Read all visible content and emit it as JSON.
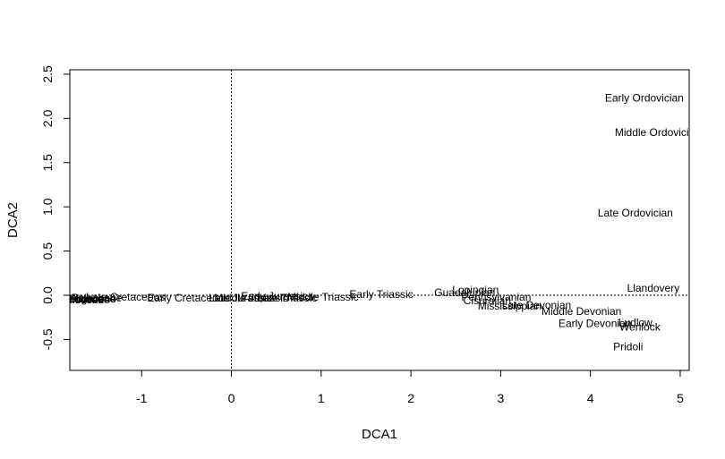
{
  "chart_data": {
    "type": "scatter",
    "xlabel": "DCA1",
    "ylabel": "DCA2",
    "xlim": [
      -1.8,
      5.1
    ],
    "ylim": [
      -0.85,
      2.55
    ],
    "x_ticks": [
      -1,
      0,
      1,
      2,
      3,
      4,
      5
    ],
    "y_ticks": [
      -0.5,
      0.0,
      0.5,
      1.0,
      1.5,
      2.0,
      2.5
    ],
    "x_tick_labels": [
      "-1",
      "0",
      "1",
      "2",
      "3",
      "4",
      "5"
    ],
    "y_tick_labels": [
      "-0.5",
      "0.0",
      "0.5",
      "1.0",
      "1.5",
      "2.0",
      "2.5"
    ],
    "reference_lines": {
      "x": 0,
      "y": 0,
      "style": "dotted"
    },
    "grid": false,
    "points": [
      {
        "label": "Early Ordovician",
        "x": 4.6,
        "y": 2.23
      },
      {
        "label": "Middle Ordovician",
        "x": 4.75,
        "y": 1.84
      },
      {
        "label": "Late Ordovician",
        "x": 4.5,
        "y": 0.93
      },
      {
        "label": "Llandovery",
        "x": 4.7,
        "y": 0.08
      },
      {
        "label": "Wenlock",
        "x": 4.55,
        "y": -0.36
      },
      {
        "label": "Ludlow",
        "x": 4.5,
        "y": -0.31
      },
      {
        "label": "Pridoli",
        "x": 4.42,
        "y": -0.58
      },
      {
        "label": "Early Devonian",
        "x": 4.05,
        "y": -0.32
      },
      {
        "label": "Middle Devonian",
        "x": 3.9,
        "y": -0.18
      },
      {
        "label": "Late Devonian",
        "x": 3.4,
        "y": -0.11
      },
      {
        "label": "Mississippian",
        "x": 3.1,
        "y": -0.12
      },
      {
        "label": "Pennsylvanian",
        "x": 2.95,
        "y": -0.02
      },
      {
        "label": "Cisuralian",
        "x": 2.85,
        "y": -0.06
      },
      {
        "label": "Guadalupian",
        "x": 2.6,
        "y": 0.03
      },
      {
        "label": "Lopingian",
        "x": 2.72,
        "y": 0.06
      },
      {
        "label": "Early Triassic",
        "x": 1.67,
        "y": 0.01
      },
      {
        "label": "Middle Triassic",
        "x": 1.02,
        "y": -0.02
      },
      {
        "label": "Late Triassic",
        "x": 0.62,
        "y": -0.03
      },
      {
        "label": "Early Jurassic",
        "x": 0.48,
        "y": -0.01
      },
      {
        "label": "Middle Jurassic",
        "x": 0.22,
        "y": -0.03
      },
      {
        "label": "Late Jurassic",
        "x": 0.1,
        "y": -0.03
      },
      {
        "label": "Early Cretaceous",
        "x": -0.48,
        "y": -0.03
      },
      {
        "label": "Late Cretaceous",
        "x": -1.18,
        "y": -0.02
      },
      {
        "label": "Paleocene",
        "x": -1.5,
        "y": -0.03
      },
      {
        "label": "Eocene",
        "x": -1.63,
        "y": -0.04
      },
      {
        "label": "Oligocene",
        "x": -1.55,
        "y": -0.04
      },
      {
        "label": "Miocene",
        "x": -1.58,
        "y": -0.05
      },
      {
        "label": "Pliocene",
        "x": -1.65,
        "y": -0.05
      },
      {
        "label": "Pleistocene",
        "x": -1.6,
        "y": -0.04
      }
    ]
  }
}
